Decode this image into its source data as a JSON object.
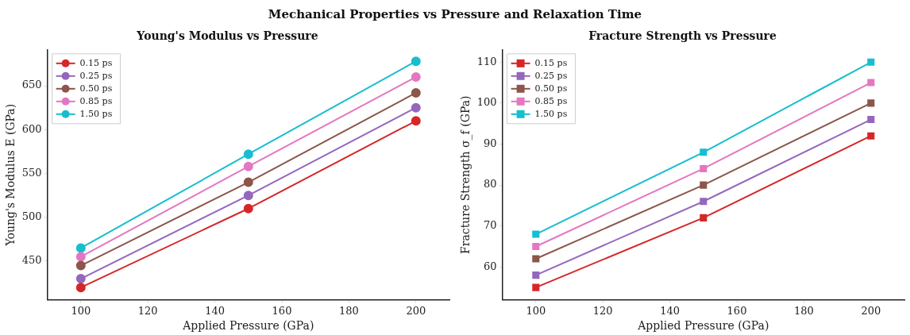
{
  "chart_data": [
    {
      "type": "line",
      "title": "Young's Modulus vs Pressure",
      "xlabel": "Applied Pressure (GPa)",
      "ylabel": "Young's Modulus E (GPa)",
      "annotations": [
        "Mechanical Properties vs Pressure and Relaxation Time"
      ],
      "x": [
        100,
        150,
        200
      ],
      "xlim": [
        90,
        210
      ],
      "xticks": [
        100,
        120,
        140,
        160,
        180,
        200
      ],
      "ylim": [
        406,
        691
      ],
      "yticks": [
        450,
        500,
        550,
        600,
        650
      ],
      "marker": "circle",
      "line_style": "solid",
      "grid": false,
      "legend": "top left",
      "series": [
        {
          "name": "0.15 ps",
          "color": "#d62728",
          "values": [
            420,
            510,
            610
          ]
        },
        {
          "name": "0.25 ps",
          "color": "#9467bd",
          "values": [
            430,
            525,
            625
          ]
        },
        {
          "name": "0.50 ps",
          "color": "#8c564b",
          "values": [
            445,
            540,
            642
          ]
        },
        {
          "name": "0.85 ps",
          "color": "#e377c2",
          "values": [
            455,
            558,
            660
          ]
        },
        {
          "name": "1.50 ps",
          "color": "#17becf",
          "values": [
            465,
            572,
            678
          ]
        }
      ]
    },
    {
      "type": "line",
      "title": "Fracture Strength vs Pressure",
      "xlabel": "Applied Pressure (GPa)",
      "ylabel": "Fracture Strength σ_f (GPa)",
      "x": [
        100,
        150,
        200
      ],
      "xlim": [
        90,
        210
      ],
      "xticks": [
        100,
        120,
        140,
        160,
        180,
        200
      ],
      "ylim": [
        52,
        113
      ],
      "yticks": [
        60,
        70,
        80,
        90,
        100,
        110
      ],
      "marker": "square",
      "line_style": "solid",
      "grid": false,
      "legend": "top left",
      "series": [
        {
          "name": "0.15 ps",
          "color": "#d62728",
          "values": [
            55,
            72,
            92
          ]
        },
        {
          "name": "0.25 ps",
          "color": "#9467bd",
          "values": [
            58,
            76,
            96
          ]
        },
        {
          "name": "0.50 ps",
          "color": "#8c564b",
          "values": [
            62,
            80,
            100
          ]
        },
        {
          "name": "0.85 ps",
          "color": "#e377c2",
          "values": [
            65,
            84,
            105
          ]
        },
        {
          "name": "1.50 ps",
          "color": "#17becf",
          "values": [
            68,
            88,
            110
          ]
        }
      ]
    }
  ]
}
